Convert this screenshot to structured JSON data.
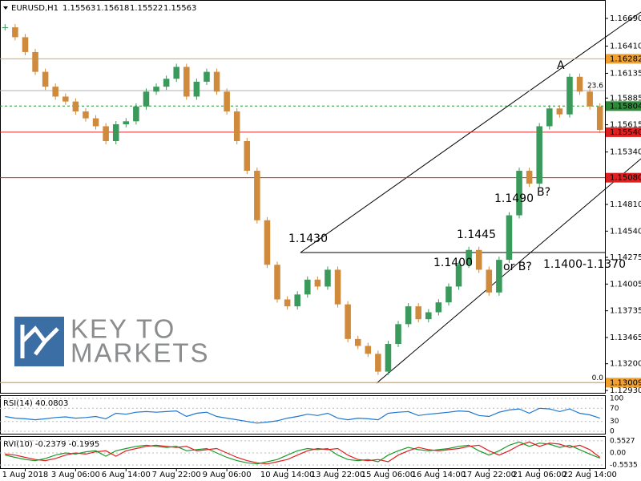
{
  "chart_data": {
    "type": "candlestick",
    "symbol": "EURUSD,H1",
    "ohlc": [
      1.15563,
      1.15618,
      1.15522,
      1.15563
    ],
    "categories": [
      null,
      null,
      "1 Aug 2018",
      null,
      null,
      null,
      null,
      "3 Aug 06:00",
      null,
      null,
      null,
      null,
      "6 Aug 14:00",
      null,
      null,
      null,
      null,
      "7 Aug 22:00",
      null,
      null,
      null,
      null,
      "9 Aug 06:00",
      null,
      null,
      null,
      null,
      null,
      "10 Aug 14:00",
      null,
      null,
      null,
      null,
      "13 Aug 22:00",
      null,
      null,
      null,
      null,
      "15 Aug 06:00",
      null,
      null,
      null,
      null,
      "16 Aug 14:00",
      null,
      null,
      null,
      null,
      "17 Aug 22:00",
      null,
      null,
      null,
      null,
      "21 Aug 06:00",
      null,
      null,
      null,
      null,
      "22 Aug 14:00",
      null
    ],
    "values": [
      1.166,
      1.165,
      1.1635,
      1.1615,
      1.16,
      1.159,
      1.1585,
      1.1575,
      1.1568,
      1.156,
      1.1545,
      1.1562,
      1.1565,
      1.158,
      1.1595,
      1.16,
      1.1608,
      1.162,
      1.159,
      1.1605,
      1.1615,
      1.1595,
      1.1575,
      1.1545,
      1.1515,
      1.1465,
      1.142,
      1.1385,
      1.1378,
      1.139,
      1.1405,
      1.1398,
      1.1415,
      1.138,
      1.1345,
      1.1338,
      1.133,
      1.1312,
      1.134,
      1.136,
      1.1378,
      1.1365,
      1.1372,
      1.1382,
      1.1398,
      1.142,
      1.1435,
      1.1415,
      1.1392,
      1.1425,
      1.147,
      1.1515,
      1.1502,
      1.156,
      1.1578,
      1.1572,
      1.161,
      1.1595,
      1.158,
      1.15563
    ],
    "up_color": "#3a9a5b",
    "down_color": "#d08a3c",
    "ylim": [
      1.12906,
      1.16876
    ],
    "yticks": [
      {
        "value": 1.1669,
        "label": "1.16690"
      },
      {
        "value": 1.1641,
        "label": "1.16410"
      },
      1.16135,
      1.15885,
      1.15615,
      {
        "value": 1.1534,
        "label": "1.15340"
      },
      {
        "value": 1.1481,
        "label": "1.14810"
      },
      {
        "value": 1.1454,
        "label": "1.14540"
      },
      1.14275,
      1.14005,
      1.13735,
      1.13465,
      {
        "value": 1.132,
        "label": "1.13200"
      },
      {
        "value": 1.1293,
        "label": "1.12930"
      }
    ],
    "price_tags": [
      {
        "value": 1.16282,
        "color": "#f0a030"
      },
      {
        "value": 1.15804,
        "color": "#2e8b3a"
      },
      {
        "value": 1.1554,
        "label": "1.15540",
        "color": "#e02020"
      },
      {
        "value": 1.1508,
        "label": "1.15080",
        "color": "#e02020"
      },
      {
        "value": 1.13009,
        "color": "#f0a030"
      }
    ],
    "fib_levels": [
      {
        "name": "23.6",
        "price": 1.1596
      },
      {
        "name": "0.0",
        "price": 1.13009
      }
    ],
    "annotations": [
      "1.1430",
      "1.1445",
      "1.1400",
      "or B?",
      "1.1400-1.1370",
      "1.1490",
      "B?",
      "A"
    ],
    "logo": [
      "KEY TO",
      "MARKETS"
    ],
    "rsi": {
      "title": "RSI(14) 40.0803",
      "color": "#1e78d2",
      "ylim": [
        0,
        100
      ],
      "yticks": [
        100,
        70,
        30,
        0
      ],
      "values": [
        45,
        40,
        38,
        35,
        38,
        42,
        44,
        40,
        42,
        45,
        38,
        55,
        52,
        58,
        60,
        58,
        60,
        62,
        45,
        55,
        58,
        45,
        40,
        35,
        30,
        25,
        28,
        32,
        40,
        45,
        52,
        48,
        55,
        40,
        35,
        40,
        38,
        35,
        55,
        58,
        60,
        48,
        52,
        55,
        58,
        62,
        60,
        48,
        45,
        58,
        65,
        68,
        55,
        70,
        68,
        60,
        68,
        55,
        50,
        40.0803
      ]
    },
    "rvi": {
      "title": "RVI(10) -0.2379 -0.1995",
      "ylim": [
        -0.62,
        0.62
      ],
      "yticks": [
        0.5527,
        {
          "value": 0,
          "label": "0.00"
        },
        -0.5535
      ],
      "series": [
        {
          "color": "#1a9a2a",
          "values": [
            -0.1,
            -0.2,
            -0.3,
            -0.35,
            -0.25,
            -0.1,
            0.0,
            -0.05,
            0.05,
            0.1,
            -0.15,
            0.1,
            0.2,
            0.3,
            0.35,
            0.3,
            0.25,
            0.3,
            0.1,
            0.15,
            0.2,
            0.0,
            -0.2,
            -0.35,
            -0.45,
            -0.5,
            -0.4,
            -0.3,
            -0.1,
            0.1,
            0.2,
            0.15,
            0.2,
            -0.1,
            -0.3,
            -0.35,
            -0.3,
            -0.4,
            -0.1,
            0.1,
            0.25,
            0.15,
            0.1,
            0.15,
            0.2,
            0.3,
            0.35,
            0.1,
            -0.1,
            0.1,
            0.35,
            0.5,
            0.3,
            0.45,
            0.4,
            0.25,
            0.35,
            0.15,
            -0.05,
            -0.2379
          ]
        },
        {
          "color": "#e02020",
          "values": [
            -0.05,
            -0.1,
            -0.2,
            -0.3,
            -0.35,
            -0.25,
            -0.1,
            0.0,
            -0.05,
            0.05,
            0.1,
            -0.15,
            0.1,
            0.2,
            0.3,
            0.35,
            0.3,
            0.25,
            0.3,
            0.1,
            0.15,
            0.2,
            0.0,
            -0.2,
            -0.35,
            -0.45,
            -0.5,
            -0.4,
            -0.3,
            -0.1,
            0.1,
            0.2,
            0.15,
            0.2,
            -0.1,
            -0.3,
            -0.35,
            -0.3,
            -0.4,
            -0.1,
            0.1,
            0.25,
            0.15,
            0.1,
            0.15,
            0.2,
            0.3,
            0.35,
            0.1,
            -0.1,
            0.1,
            0.35,
            0.5,
            0.3,
            0.45,
            0.4,
            0.25,
            0.35,
            0.15,
            -0.1995
          ]
        }
      ]
    }
  }
}
